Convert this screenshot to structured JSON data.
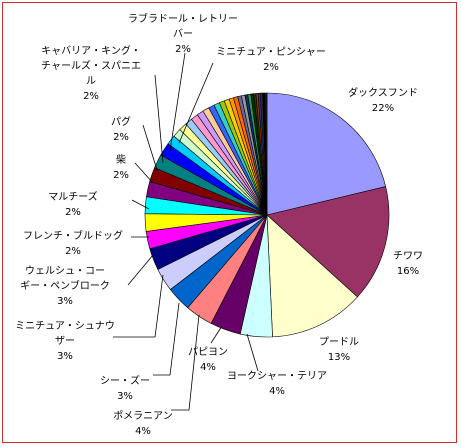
{
  "chart_data": {
    "type": "pie",
    "title": "",
    "start_angle_deg": 0,
    "direction": "clockwise",
    "slices": [
      {
        "label": "ダックスフンド",
        "pct_text": "22%",
        "value": 22.0,
        "color": "#9999ff"
      },
      {
        "label": "チワワ",
        "pct_text": "16%",
        "value": 16.0,
        "color": "#993366"
      },
      {
        "label": "プードル",
        "pct_text": "13%",
        "value": 13.0,
        "color": "#ffffcc"
      },
      {
        "label": "ヨークシャー・テリア",
        "pct_text": "4%",
        "value": 4.4,
        "color": "#ccffff"
      },
      {
        "label": "パピヨン",
        "pct_text": "4%",
        "value": 4.2,
        "color": "#660066"
      },
      {
        "label": "ポメラニアン",
        "pct_text": "4%",
        "value": 3.8,
        "color": "#ff8080"
      },
      {
        "label": "シー・ズー",
        "pct_text": "3%",
        "value": 3.4,
        "color": "#0066cc"
      },
      {
        "label": "ミニチュア・シュナウザー",
        "pct_text": "3%",
        "value": 3.2,
        "color": "#ccccff"
      },
      {
        "label": "ウェルシュ・コーギー・ペンブローク",
        "pct_text": "3%",
        "value": 3.0,
        "color": "#000080"
      },
      {
        "label": "フレンチ・ブルドッグ",
        "pct_text": "2%",
        "value": 2.4,
        "color": "#ff00ff"
      },
      {
        "label": "マルチーズ",
        "pct_text": "2%",
        "value": 2.4,
        "color": "#ffff00"
      },
      {
        "label": "柴",
        "pct_text": "2%",
        "value": 2.3,
        "color": "#00ffff"
      },
      {
        "label": "パグ",
        "pct_text": "2%",
        "value": 2.1,
        "color": "#800080"
      },
      {
        "label": "キャバリア・キング・チャールズ・スパニエル",
        "pct_text": "2%",
        "value": 2.0,
        "color": "#800000"
      },
      {
        "label": "ラブラドール・レトリーバー",
        "pct_text": "2%",
        "value": 1.9,
        "color": "#008080"
      },
      {
        "label": "ミニチュア・ピンシャー",
        "pct_text": "2%",
        "value": 1.8,
        "color": "#0000ff"
      },
      {
        "label": "",
        "value": 1.3,
        "color": "#00ccff"
      },
      {
        "label": "",
        "value": 1.2,
        "color": "#ccffcc"
      },
      {
        "label": "",
        "value": 1.1,
        "color": "#ffff99"
      },
      {
        "label": "",
        "value": 1.0,
        "color": "#99ccff"
      },
      {
        "label": "",
        "value": 1.0,
        "color": "#ff99cc"
      },
      {
        "label": "",
        "value": 0.9,
        "color": "#cc99ff"
      },
      {
        "label": "",
        "value": 0.9,
        "color": "#ffcc99"
      },
      {
        "label": "",
        "value": 0.8,
        "color": "#3366ff"
      },
      {
        "label": "",
        "value": 0.8,
        "color": "#33cccc"
      },
      {
        "label": "",
        "value": 0.7,
        "color": "#99cc00"
      },
      {
        "label": "",
        "value": 0.7,
        "color": "#ffcc00"
      },
      {
        "label": "",
        "value": 0.6,
        "color": "#ff9900"
      },
      {
        "label": "",
        "value": 0.6,
        "color": "#ff6600"
      },
      {
        "label": "",
        "value": 0.5,
        "color": "#666699"
      },
      {
        "label": "",
        "value": 0.5,
        "color": "#969696"
      },
      {
        "label": "",
        "value": 0.4,
        "color": "#003366"
      },
      {
        "label": "",
        "value": 0.4,
        "color": "#339966"
      },
      {
        "label": "",
        "value": 0.4,
        "color": "#003300"
      },
      {
        "label": "",
        "value": 0.3,
        "color": "#333300"
      },
      {
        "label": "",
        "value": 0.3,
        "color": "#993300"
      },
      {
        "label": "",
        "value": 0.3,
        "color": "#333399"
      },
      {
        "label": "",
        "value": 0.3,
        "color": "#333333"
      },
      {
        "label": "",
        "value": 0.3,
        "color": "#000000"
      },
      {
        "label": "",
        "value": 0.3,
        "color": "#1a1a1a"
      }
    ]
  }
}
